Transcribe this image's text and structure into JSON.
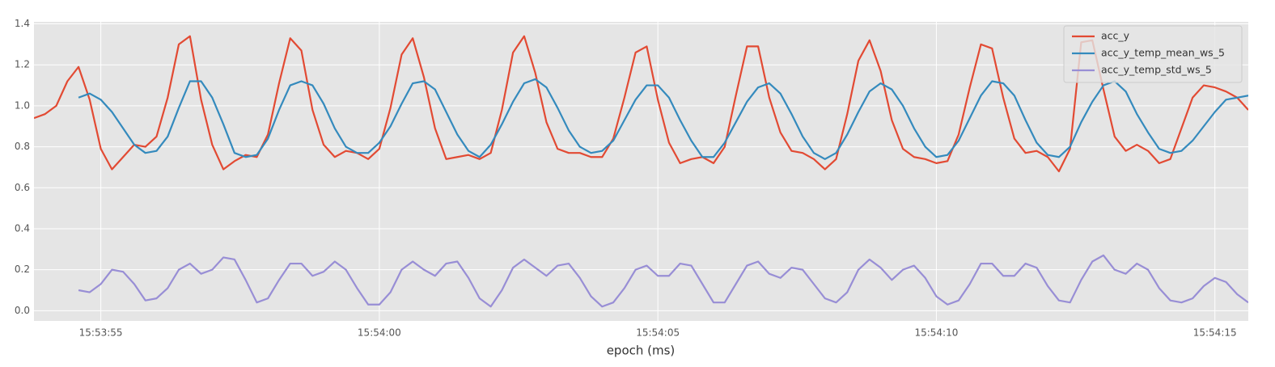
{
  "chart_data": {
    "type": "line",
    "xlabel": "epoch (ms)",
    "x": [
      57233.8,
      57234,
      57234.2,
      57234.4,
      57234.6,
      57234.8,
      57235,
      57235.2,
      57235.4,
      57235.6,
      57235.8,
      57236,
      57236.2,
      57236.4,
      57236.6,
      57236.8,
      57237,
      57237.2,
      57237.4,
      57237.6,
      57237.8,
      57238,
      57238.2,
      57238.4,
      57238.6,
      57238.8,
      57239,
      57239.2,
      57239.4,
      57239.6,
      57239.8,
      57240,
      57240.2,
      57240.4,
      57240.6,
      57240.8,
      57241,
      57241.2,
      57241.4,
      57241.6,
      57241.8,
      57242,
      57242.2,
      57242.4,
      57242.6,
      57242.8,
      57243,
      57243.2,
      57243.4,
      57243.6,
      57243.8,
      57244,
      57244.2,
      57244.4,
      57244.6,
      57244.8,
      57245,
      57245.2,
      57245.4,
      57245.6,
      57245.8,
      57246,
      57246.2,
      57246.4,
      57246.6,
      57246.8,
      57247,
      57247.2,
      57247.4,
      57247.6,
      57247.8,
      57248,
      57248.2,
      57248.4,
      57248.6,
      57248.8,
      57249,
      57249.2,
      57249.4,
      57249.6,
      57249.8,
      57250,
      57250.2,
      57250.4,
      57250.6,
      57250.8,
      57251,
      57251.2,
      57251.4,
      57251.6,
      57251.8,
      57252,
      57252.2,
      57252.4,
      57252.6,
      57252.8,
      57253,
      57253.2,
      57253.4,
      57253.6,
      57253.8,
      57254,
      57254.2,
      57254.4,
      57254.6,
      57254.8,
      57255,
      57255.2,
      57255.4,
      57255.6
    ],
    "xlim": [
      57233.8,
      57255.6
    ],
    "xticks": [
      {
        "value": 57235,
        "label": "15:53:55"
      },
      {
        "value": 57240,
        "label": "15:54:00"
      },
      {
        "value": 57245,
        "label": "15:54:05"
      },
      {
        "value": 57250,
        "label": "15:54:10"
      },
      {
        "value": 57255,
        "label": "15:54:15"
      }
    ],
    "ylim": [
      -0.05,
      1.41
    ],
    "yticks": [
      {
        "value": 0,
        "label": "0.0"
      },
      0.2,
      0.4,
      0.6,
      0.8,
      {
        "value": 1,
        "label": "1.0"
      },
      1.2,
      1.4
    ],
    "grid": true,
    "legend": "upper right",
    "series": [
      {
        "name": "acc_y",
        "color": "#E24A33",
        "values": [
          0.94,
          0.96,
          1.0,
          1.12,
          1.19,
          1.03,
          0.79,
          0.69,
          0.75,
          0.81,
          0.8,
          0.85,
          1.04,
          1.3,
          1.34,
          1.03,
          0.81,
          0.69,
          0.73,
          0.76,
          0.75,
          0.86,
          1.11,
          1.33,
          1.27,
          0.98,
          0.81,
          0.75,
          0.78,
          0.77,
          0.74,
          0.79,
          0.99,
          1.25,
          1.33,
          1.14,
          0.89,
          0.74,
          0.75,
          0.76,
          0.74,
          0.77,
          0.98,
          1.26,
          1.34,
          1.16,
          0.92,
          0.79,
          0.77,
          0.77,
          0.75,
          0.75,
          0.84,
          1.04,
          1.26,
          1.29,
          1.03,
          0.82,
          0.72,
          0.74,
          0.75,
          0.72,
          0.8,
          1.05,
          1.29,
          1.29,
          1.04,
          0.87,
          0.78,
          0.77,
          0.74,
          0.69,
          0.74,
          0.96,
          1.22,
          1.32,
          1.17,
          0.93,
          0.79,
          0.75,
          0.74,
          0.72,
          0.73,
          0.86,
          1.09,
          1.3,
          1.28,
          1.04,
          0.84,
          0.77,
          0.78,
          0.75,
          0.68,
          0.79,
          1.31,
          1.32,
          1.08,
          0.85,
          0.78,
          0.81,
          0.78,
          0.72,
          0.74,
          0.89,
          1.04,
          1.1,
          1.09,
          1.07,
          1.04,
          0.98
        ]
      },
      {
        "name": "acc_y_temp_mean_ws_5",
        "color": "#348ABD",
        "values": [
          null,
          null,
          null,
          null,
          1.04,
          1.06,
          1.03,
          0.97,
          0.89,
          0.81,
          0.77,
          0.78,
          0.85,
          0.99,
          1.12,
          1.12,
          1.04,
          0.91,
          0.77,
          0.75,
          0.76,
          0.84,
          0.98,
          1.1,
          1.12,
          1.1,
          1.01,
          0.89,
          0.8,
          0.77,
          0.77,
          0.82,
          0.9,
          1.01,
          1.11,
          1.12,
          1.08,
          0.97,
          0.86,
          0.78,
          0.75,
          0.81,
          0.91,
          1.02,
          1.11,
          1.13,
          1.09,
          0.99,
          0.88,
          0.8,
          0.77,
          0.78,
          0.83,
          0.93,
          1.03,
          1.1,
          1.1,
          1.04,
          0.93,
          0.83,
          0.75,
          0.75,
          0.82,
          0.92,
          1.02,
          1.09,
          1.11,
          1.06,
          0.96,
          0.85,
          0.77,
          0.74,
          0.77,
          0.86,
          0.97,
          1.07,
          1.11,
          1.08,
          1.0,
          0.89,
          0.8,
          0.75,
          0.76,
          0.83,
          0.94,
          1.05,
          1.12,
          1.11,
          1.05,
          0.93,
          0.82,
          0.76,
          0.75,
          0.8,
          0.92,
          1.02,
          1.1,
          1.12,
          1.07,
          0.96,
          0.87,
          0.79,
          0.77,
          0.78,
          0.83,
          0.9,
          0.97,
          1.03,
          1.04,
          1.05
        ]
      },
      {
        "name": "acc_y_temp_std_ws_5",
        "color": "#988ED5",
        "values": [
          null,
          null,
          null,
          null,
          0.1,
          0.09,
          0.13,
          0.2,
          0.19,
          0.13,
          0.05,
          0.06,
          0.11,
          0.2,
          0.23,
          0.18,
          0.2,
          0.26,
          0.25,
          0.15,
          0.04,
          0.06,
          0.15,
          0.23,
          0.23,
          0.17,
          0.19,
          0.24,
          0.2,
          0.11,
          0.03,
          0.03,
          0.09,
          0.2,
          0.24,
          0.2,
          0.17,
          0.23,
          0.24,
          0.16,
          0.06,
          0.02,
          0.1,
          0.21,
          0.25,
          0.21,
          0.17,
          0.22,
          0.23,
          0.16,
          0.07,
          0.02,
          0.04,
          0.11,
          0.2,
          0.22,
          0.17,
          0.17,
          0.23,
          0.22,
          0.13,
          0.04,
          0.04,
          0.13,
          0.22,
          0.24,
          0.18,
          0.16,
          0.21,
          0.2,
          0.13,
          0.06,
          0.04,
          0.09,
          0.2,
          0.25,
          0.21,
          0.15,
          0.2,
          0.22,
          0.16,
          0.07,
          0.03,
          0.05,
          0.13,
          0.23,
          0.23,
          0.17,
          0.17,
          0.23,
          0.21,
          0.12,
          0.05,
          0.04,
          0.15,
          0.24,
          0.27,
          0.2,
          0.18,
          0.23,
          0.2,
          0.11,
          0.05,
          0.04,
          0.06,
          0.12,
          0.16,
          0.14,
          0.08,
          0.04
        ]
      }
    ]
  }
}
